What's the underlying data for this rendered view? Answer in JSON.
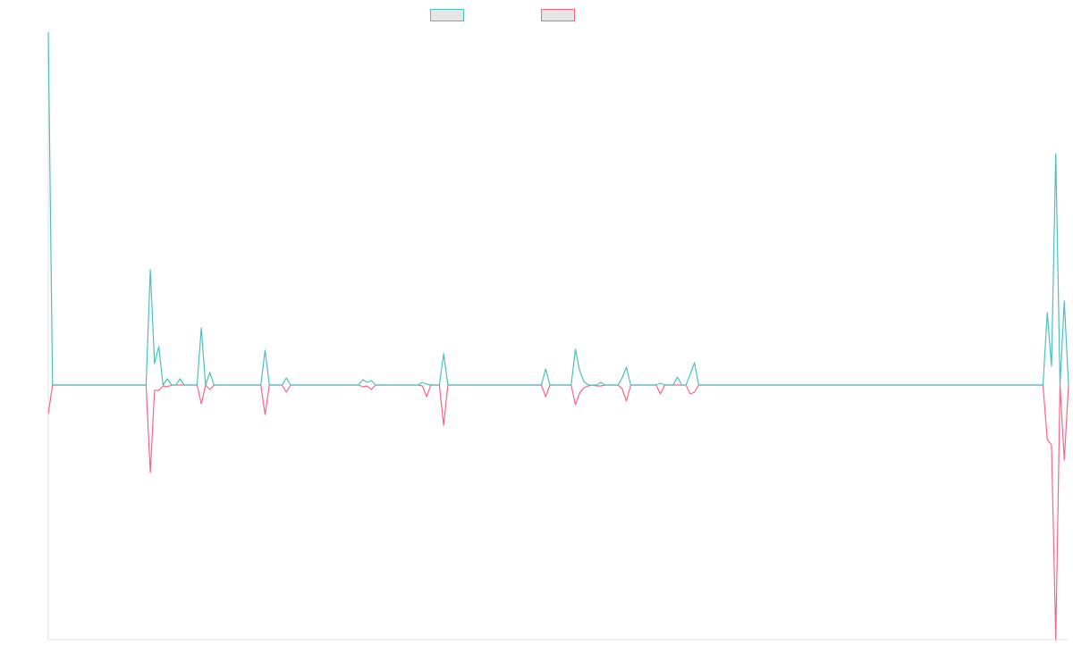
{
  "chart_data": {
    "type": "line",
    "title": "",
    "xlabel": "",
    "ylabel": "",
    "point_count": 241,
    "ylim": [
      -285,
      395
    ],
    "grid": false,
    "legend_placement": "top-center",
    "series": [
      {
        "name": "",
        "color": "#4bc0c0",
        "nonzero_points": [
          [
            0,
            395
          ],
          [
            24,
            129
          ],
          [
            25,
            24
          ],
          [
            26,
            43
          ],
          [
            28,
            7
          ],
          [
            31,
            7
          ],
          [
            36,
            64
          ],
          [
            38,
            14
          ],
          [
            51,
            39
          ],
          [
            56,
            8
          ],
          [
            74,
            6
          ],
          [
            75,
            3
          ],
          [
            76,
            5
          ],
          [
            88,
            3
          ],
          [
            89,
            1
          ],
          [
            93,
            35
          ],
          [
            117,
            18
          ],
          [
            124,
            40
          ],
          [
            125,
            16
          ],
          [
            126,
            4
          ],
          [
            130,
            3
          ],
          [
            135,
            8
          ],
          [
            136,
            20
          ],
          [
            144,
            2
          ],
          [
            148,
            9
          ],
          [
            151,
            12
          ],
          [
            152,
            25
          ],
          [
            235,
            81
          ],
          [
            236,
            21
          ],
          [
            237,
            259
          ],
          [
            239,
            94
          ]
        ]
      },
      {
        "name": "",
        "color": "#ff6384",
        "nonzero_points": [
          [
            0,
            -32
          ],
          [
            24,
            -98
          ],
          [
            25,
            -6
          ],
          [
            26,
            -6
          ],
          [
            27,
            -1
          ],
          [
            28,
            -2
          ],
          [
            36,
            -21
          ],
          [
            38,
            -5
          ],
          [
            51,
            -33
          ],
          [
            56,
            -8
          ],
          [
            74,
            -2
          ],
          [
            75,
            -1
          ],
          [
            76,
            -5
          ],
          [
            88,
            -1
          ],
          [
            89,
            -13
          ],
          [
            93,
            -45
          ],
          [
            117,
            -13
          ],
          [
            124,
            -22
          ],
          [
            125,
            -9
          ],
          [
            126,
            -3
          ],
          [
            127,
            -1
          ],
          [
            129,
            -1
          ],
          [
            130,
            -1
          ],
          [
            135,
            -4
          ],
          [
            136,
            -18
          ],
          [
            144,
            -10
          ],
          [
            151,
            -10
          ],
          [
            152,
            -8
          ],
          [
            235,
            -61
          ],
          [
            236,
            -67
          ],
          [
            237,
            -285
          ],
          [
            239,
            -84
          ]
        ]
      }
    ]
  }
}
